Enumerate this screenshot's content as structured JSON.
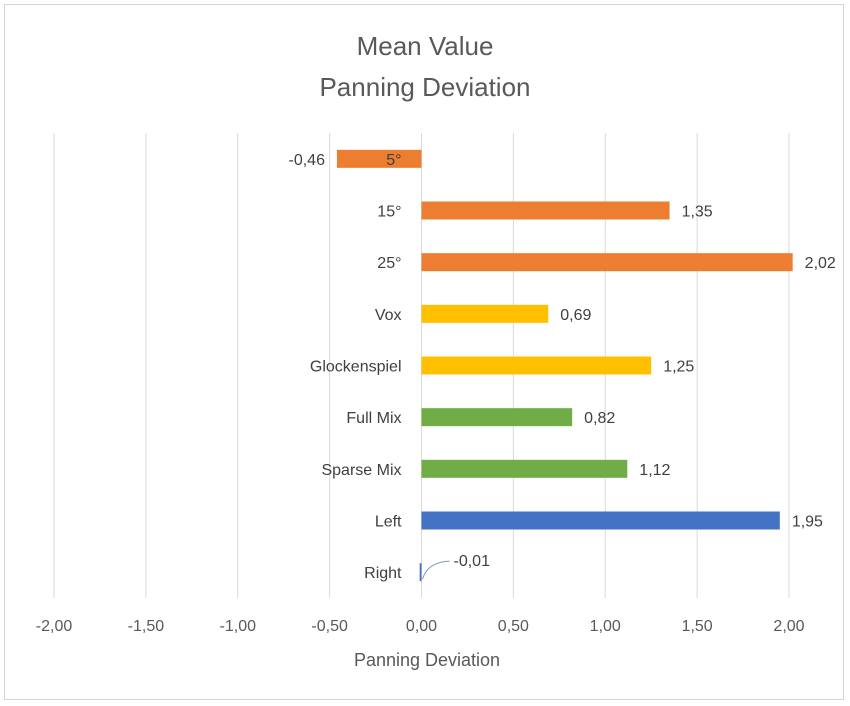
{
  "chart_data": {
    "type": "bar",
    "orientation": "horizontal",
    "title_lines": [
      "Mean Value",
      "Panning Deviation"
    ],
    "xlabel": "Panning Deviation",
    "ylabel": "",
    "xlim": [
      -2.0,
      2.0
    ],
    "x_ticks": [
      -2.0,
      -1.5,
      -1.0,
      -0.5,
      0.0,
      0.5,
      1.0,
      1.5,
      2.0
    ],
    "x_tick_labels": [
      "-2,00",
      "-1,50",
      "-1,00",
      "-0,50",
      "0,00",
      "0,50",
      "1,00",
      "1,50",
      "2,00"
    ],
    "grid": true,
    "legend": "none",
    "categories": [
      "5°",
      "15°",
      "25°",
      "Vox",
      "Glockenspiel",
      "Full Mix",
      "Sparse Mix",
      "Left",
      "Right"
    ],
    "values": [
      -0.46,
      1.35,
      2.02,
      0.69,
      1.25,
      0.82,
      1.12,
      1.95,
      -0.01
    ],
    "value_labels": [
      "-0,46",
      "1,35",
      "2,02",
      "0,69",
      "1,25",
      "0,82",
      "1,12",
      "1,95",
      "-0,01"
    ],
    "bar_colors": [
      "#ED7D31",
      "#ED7D31",
      "#ED7D31",
      "#FFC000",
      "#FFC000",
      "#70AD47",
      "#70AD47",
      "#4472C4",
      "#4472C4"
    ]
  },
  "colors": {
    "grid": "#d9d9d9",
    "text": "#404040",
    "axis_text": "#595959"
  }
}
